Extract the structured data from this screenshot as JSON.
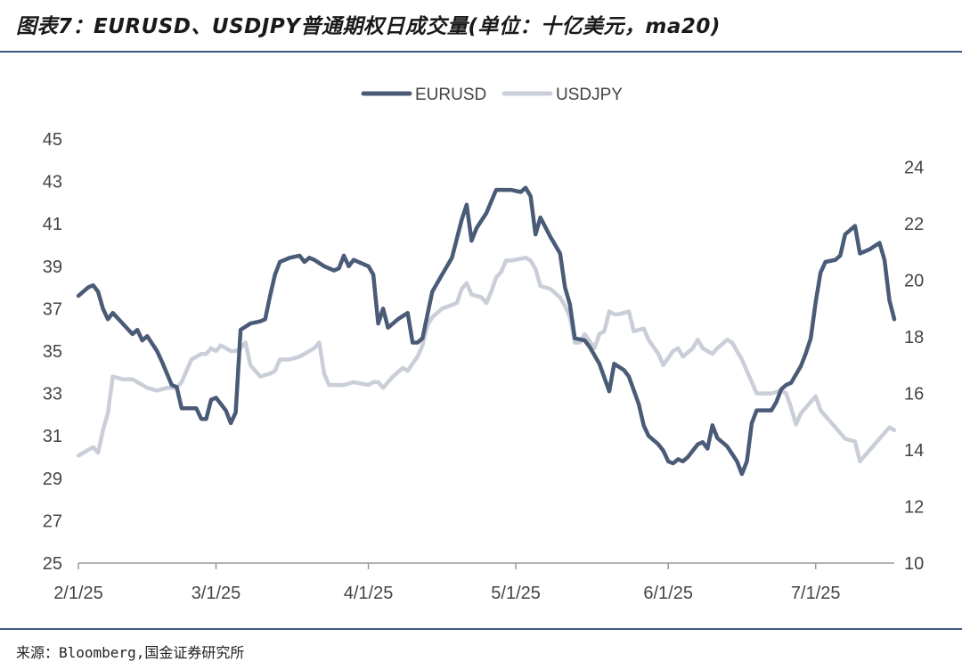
{
  "figure": {
    "title": "图表7：EURUSD、USDJPY普通期权日成交量(单位：十亿美元，ma20)",
    "source": "来源：Bloomberg,国金证券研究所"
  },
  "colors": {
    "eurusd": "#4a5b77",
    "usdjpy": "#c9ced8",
    "axis": "#999999",
    "rule": "#3d5a85"
  },
  "chart_data": {
    "type": "line",
    "title": "",
    "x_axis": {
      "type": "date",
      "range": [
        "2025-02-01",
        "2025-07-12"
      ],
      "ticks": [
        "2/1/25",
        "3/1/25",
        "4/1/25",
        "5/1/25",
        "6/1/25",
        "7/1/25"
      ]
    },
    "y_left": {
      "range": [
        25,
        45
      ],
      "ticks": [
        "25",
        "27",
        "29",
        "31",
        "33",
        "35",
        "37",
        "39",
        "41",
        "43",
        "45"
      ]
    },
    "y_right": {
      "range": [
        10,
        25
      ],
      "ticks": [
        "10",
        "12",
        "14",
        "16",
        "18",
        "20",
        "22",
        "24"
      ]
    },
    "grid": false,
    "legend": {
      "position": "top-center",
      "entries": [
        "EURUSD",
        "USDJPY"
      ]
    },
    "series": [
      {
        "name": "EURUSD",
        "axis": "left",
        "points": [
          [
            "2025-02-01",
            37.6
          ],
          [
            "2025-02-03",
            38.0
          ],
          [
            "2025-02-04",
            38.1
          ],
          [
            "2025-02-05",
            37.8
          ],
          [
            "2025-02-06",
            37.0
          ],
          [
            "2025-02-07",
            36.5
          ],
          [
            "2025-02-08",
            36.8
          ],
          [
            "2025-02-10",
            36.3
          ],
          [
            "2025-02-12",
            35.8
          ],
          [
            "2025-02-13",
            36.0
          ],
          [
            "2025-02-14",
            35.5
          ],
          [
            "2025-02-15",
            35.7
          ],
          [
            "2025-02-17",
            35.0
          ],
          [
            "2025-02-18",
            34.5
          ],
          [
            "2025-02-20",
            33.4
          ],
          [
            "2025-02-21",
            33.3
          ],
          [
            "2025-02-22",
            32.3
          ],
          [
            "2025-02-25",
            32.3
          ],
          [
            "2025-02-26",
            31.8
          ],
          [
            "2025-02-27",
            31.8
          ],
          [
            "2025-02-28",
            32.7
          ],
          [
            "2025-03-01",
            32.8
          ],
          [
            "2025-03-03",
            32.2
          ],
          [
            "2025-03-04",
            31.6
          ],
          [
            "2025-03-05",
            32.1
          ],
          [
            "2025-03-06",
            36.0
          ],
          [
            "2025-03-08",
            36.3
          ],
          [
            "2025-03-10",
            36.4
          ],
          [
            "2025-03-11",
            36.5
          ],
          [
            "2025-03-12",
            37.6
          ],
          [
            "2025-03-13",
            38.6
          ],
          [
            "2025-03-14",
            39.2
          ],
          [
            "2025-03-16",
            39.4
          ],
          [
            "2025-03-18",
            39.5
          ],
          [
            "2025-03-19",
            39.2
          ],
          [
            "2025-03-20",
            39.4
          ],
          [
            "2025-03-21",
            39.3
          ],
          [
            "2025-03-23",
            39.0
          ],
          [
            "2025-03-25",
            38.8
          ],
          [
            "2025-03-26",
            38.9
          ],
          [
            "2025-03-27",
            39.5
          ],
          [
            "2025-03-28",
            39.0
          ],
          [
            "2025-03-29",
            39.3
          ],
          [
            "2025-03-31",
            39.1
          ],
          [
            "2025-04-01",
            39.0
          ],
          [
            "2025-04-02",
            38.6
          ],
          [
            "2025-04-03",
            36.3
          ],
          [
            "2025-04-04",
            37.0
          ],
          [
            "2025-04-05",
            36.1
          ],
          [
            "2025-04-07",
            36.5
          ],
          [
            "2025-04-09",
            36.8
          ],
          [
            "2025-04-10",
            35.4
          ],
          [
            "2025-04-11",
            35.4
          ],
          [
            "2025-04-12",
            35.6
          ],
          [
            "2025-04-14",
            37.8
          ],
          [
            "2025-04-16",
            38.6
          ],
          [
            "2025-04-18",
            39.4
          ],
          [
            "2025-04-20",
            41.2
          ],
          [
            "2025-04-21",
            41.9
          ],
          [
            "2025-04-22",
            40.2
          ],
          [
            "2025-04-23",
            40.8
          ],
          [
            "2025-04-25",
            41.5
          ],
          [
            "2025-04-27",
            42.6
          ],
          [
            "2025-04-28",
            42.6
          ],
          [
            "2025-04-30",
            42.6
          ],
          [
            "2025-05-02",
            42.5
          ],
          [
            "2025-05-03",
            42.7
          ],
          [
            "2025-05-04",
            42.3
          ],
          [
            "2025-05-05",
            40.5
          ],
          [
            "2025-05-06",
            41.3
          ],
          [
            "2025-05-08",
            40.4
          ],
          [
            "2025-05-09",
            40.0
          ],
          [
            "2025-05-10",
            39.6
          ],
          [
            "2025-05-11",
            38.0
          ],
          [
            "2025-05-12",
            37.2
          ],
          [
            "2025-05-13",
            35.6
          ],
          [
            "2025-05-15",
            35.5
          ],
          [
            "2025-05-16",
            35.2
          ],
          [
            "2025-05-17",
            34.8
          ],
          [
            "2025-05-18",
            34.4
          ],
          [
            "2025-05-20",
            33.1
          ],
          [
            "2025-05-21",
            34.4
          ],
          [
            "2025-05-23",
            34.1
          ],
          [
            "2025-05-24",
            33.8
          ],
          [
            "2025-05-26",
            32.5
          ],
          [
            "2025-05-27",
            31.5
          ],
          [
            "2025-05-28",
            31.0
          ],
          [
            "2025-05-30",
            30.6
          ],
          [
            "2025-05-31",
            30.3
          ],
          [
            "2025-06-01",
            29.8
          ],
          [
            "2025-06-02",
            29.7
          ],
          [
            "2025-06-03",
            29.9
          ],
          [
            "2025-06-04",
            29.8
          ],
          [
            "2025-06-05",
            30.0
          ],
          [
            "2025-06-07",
            30.6
          ],
          [
            "2025-06-08",
            30.7
          ],
          [
            "2025-06-09",
            30.4
          ],
          [
            "2025-06-10",
            31.5
          ],
          [
            "2025-06-11",
            30.9
          ],
          [
            "2025-06-13",
            30.5
          ],
          [
            "2025-06-15",
            29.8
          ],
          [
            "2025-06-16",
            29.2
          ],
          [
            "2025-06-17",
            29.8
          ],
          [
            "2025-06-18",
            31.6
          ],
          [
            "2025-06-19",
            32.2
          ],
          [
            "2025-06-22",
            32.2
          ],
          [
            "2025-06-23",
            32.6
          ],
          [
            "2025-06-24",
            33.2
          ],
          [
            "2025-06-25",
            33.4
          ],
          [
            "2025-06-26",
            33.5
          ],
          [
            "2025-06-28",
            34.3
          ],
          [
            "2025-06-29",
            34.9
          ],
          [
            "2025-06-30",
            35.6
          ],
          [
            "2025-07-01",
            37.3
          ],
          [
            "2025-07-02",
            38.7
          ],
          [
            "2025-07-03",
            39.2
          ],
          [
            "2025-07-05",
            39.3
          ],
          [
            "2025-07-06",
            39.5
          ],
          [
            "2025-07-07",
            40.5
          ],
          [
            "2025-07-09",
            40.9
          ],
          [
            "2025-07-10",
            39.6
          ],
          [
            "2025-07-12",
            39.8
          ],
          [
            "2025-07-14",
            40.1
          ],
          [
            "2025-07-15",
            39.3
          ],
          [
            "2025-07-16",
            37.4
          ],
          [
            "2025-07-17",
            36.5
          ]
        ]
      },
      {
        "name": "USDJPY",
        "axis": "right",
        "points": [
          [
            "2025-02-01",
            13.8
          ],
          [
            "2025-02-03",
            14.0
          ],
          [
            "2025-02-04",
            14.1
          ],
          [
            "2025-02-05",
            13.9
          ],
          [
            "2025-02-06",
            14.7
          ],
          [
            "2025-02-07",
            15.3
          ],
          [
            "2025-02-08",
            16.6
          ],
          [
            "2025-02-10",
            16.5
          ],
          [
            "2025-02-12",
            16.5
          ],
          [
            "2025-02-13",
            16.4
          ],
          [
            "2025-02-14",
            16.3
          ],
          [
            "2025-02-15",
            16.2
          ],
          [
            "2025-02-17",
            16.1
          ],
          [
            "2025-02-19",
            16.2
          ],
          [
            "2025-02-21",
            16.2
          ],
          [
            "2025-02-22",
            16.4
          ],
          [
            "2025-02-24",
            17.2
          ],
          [
            "2025-02-26",
            17.4
          ],
          [
            "2025-02-27",
            17.4
          ],
          [
            "2025-02-28",
            17.6
          ],
          [
            "2025-03-01",
            17.5
          ],
          [
            "2025-03-02",
            17.7
          ],
          [
            "2025-03-04",
            17.5
          ],
          [
            "2025-03-05",
            17.5
          ],
          [
            "2025-03-06",
            17.6
          ],
          [
            "2025-03-07",
            17.8
          ],
          [
            "2025-03-08",
            17.0
          ],
          [
            "2025-03-10",
            16.6
          ],
          [
            "2025-03-12",
            16.7
          ],
          [
            "2025-03-13",
            16.8
          ],
          [
            "2025-03-14",
            17.2
          ],
          [
            "2025-03-16",
            17.2
          ],
          [
            "2025-03-18",
            17.3
          ],
          [
            "2025-03-19",
            17.4
          ],
          [
            "2025-03-21",
            17.6
          ],
          [
            "2025-03-22",
            17.8
          ],
          [
            "2025-03-23",
            16.7
          ],
          [
            "2025-03-24",
            16.3
          ],
          [
            "2025-03-27",
            16.3
          ],
          [
            "2025-03-29",
            16.4
          ],
          [
            "2025-04-01",
            16.3
          ],
          [
            "2025-04-02",
            16.4
          ],
          [
            "2025-04-03",
            16.4
          ],
          [
            "2025-04-04",
            16.2
          ],
          [
            "2025-04-06",
            16.6
          ],
          [
            "2025-04-08",
            16.9
          ],
          [
            "2025-04-09",
            16.8
          ],
          [
            "2025-04-11",
            17.3
          ],
          [
            "2025-04-12",
            17.7
          ],
          [
            "2025-04-13",
            18.4
          ],
          [
            "2025-04-14",
            18.7
          ],
          [
            "2025-04-16",
            19.0
          ],
          [
            "2025-04-19",
            19.2
          ],
          [
            "2025-04-20",
            19.7
          ],
          [
            "2025-04-21",
            19.9
          ],
          [
            "2025-04-22",
            19.5
          ],
          [
            "2025-04-24",
            19.4
          ],
          [
            "2025-04-25",
            19.2
          ],
          [
            "2025-04-26",
            19.6
          ],
          [
            "2025-04-27",
            20.1
          ],
          [
            "2025-04-28",
            20.3
          ],
          [
            "2025-04-29",
            20.7
          ],
          [
            "2025-04-30",
            20.7
          ],
          [
            "2025-05-03",
            20.8
          ],
          [
            "2025-05-04",
            20.7
          ],
          [
            "2025-05-05",
            20.4
          ],
          [
            "2025-05-06",
            19.8
          ],
          [
            "2025-05-08",
            19.7
          ],
          [
            "2025-05-10",
            19.4
          ],
          [
            "2025-05-11",
            19.1
          ],
          [
            "2025-05-12",
            18.7
          ],
          [
            "2025-05-13",
            17.8
          ],
          [
            "2025-05-14",
            17.8
          ],
          [
            "2025-05-15",
            18.1
          ],
          [
            "2025-05-17",
            17.6
          ],
          [
            "2025-05-18",
            18.1
          ],
          [
            "2025-05-19",
            18.2
          ],
          [
            "2025-05-20",
            18.9
          ],
          [
            "2025-05-21",
            18.8
          ],
          [
            "2025-05-22",
            18.8
          ],
          [
            "2025-05-24",
            18.9
          ],
          [
            "2025-05-25",
            18.2
          ],
          [
            "2025-05-27",
            18.3
          ],
          [
            "2025-05-28",
            17.9
          ],
          [
            "2025-05-30",
            17.4
          ],
          [
            "2025-05-31",
            17.0
          ],
          [
            "2025-06-02",
            17.5
          ],
          [
            "2025-06-03",
            17.6
          ],
          [
            "2025-06-04",
            17.3
          ],
          [
            "2025-06-06",
            17.6
          ],
          [
            "2025-06-07",
            17.9
          ],
          [
            "2025-06-08",
            17.6
          ],
          [
            "2025-06-10",
            17.4
          ],
          [
            "2025-06-11",
            17.6
          ],
          [
            "2025-06-13",
            17.9
          ],
          [
            "2025-06-14",
            17.8
          ],
          [
            "2025-06-15",
            17.5
          ],
          [
            "2025-06-16",
            17.2
          ],
          [
            "2025-06-18",
            16.4
          ],
          [
            "2025-06-19",
            16.0
          ],
          [
            "2025-06-22",
            16.0
          ],
          [
            "2025-06-24",
            16.1
          ],
          [
            "2025-06-25",
            16.0
          ],
          [
            "2025-06-26",
            15.5
          ],
          [
            "2025-06-27",
            14.9
          ],
          [
            "2025-06-28",
            15.3
          ],
          [
            "2025-06-30",
            15.7
          ],
          [
            "2025-07-01",
            15.9
          ],
          [
            "2025-07-02",
            15.4
          ],
          [
            "2025-07-04",
            15.0
          ],
          [
            "2025-07-06",
            14.6
          ],
          [
            "2025-07-07",
            14.4
          ],
          [
            "2025-07-09",
            14.3
          ],
          [
            "2025-07-10",
            13.6
          ],
          [
            "2025-07-12",
            14.0
          ],
          [
            "2025-07-14",
            14.4
          ],
          [
            "2025-07-16",
            14.8
          ],
          [
            "2025-07-17",
            14.7
          ]
        ]
      }
    ]
  }
}
